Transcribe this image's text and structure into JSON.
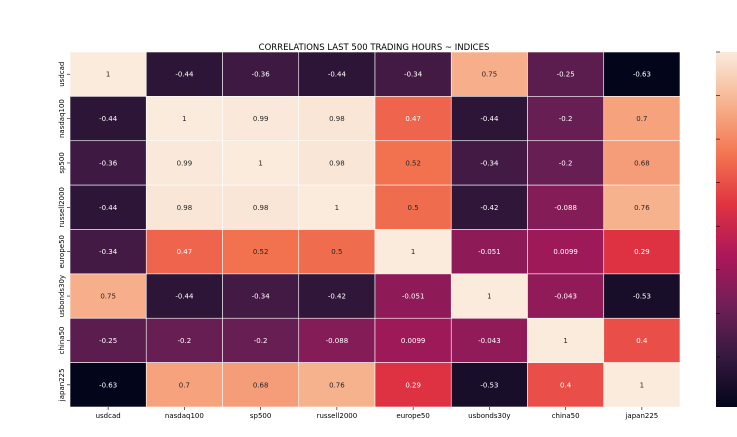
{
  "chart_data": {
    "type": "heatmap",
    "title": "CORRELATIONS LAST 500 TRADING HOURS  ~ INDICES",
    "xlabel": "",
    "ylabel": "",
    "x": [
      "usdcad",
      "nasdaq100",
      "sp500",
      "russell2000",
      "europe50",
      "usbonds30y",
      "china50",
      "japan225"
    ],
    "y": [
      "usdcad",
      "nasdaq100",
      "sp500",
      "russell2000",
      "europe50",
      "usbonds30y",
      "china50",
      "japan225"
    ],
    "values": [
      [
        1,
        -0.44,
        -0.36,
        -0.44,
        -0.34,
        0.75,
        -0.25,
        -0.63
      ],
      [
        -0.44,
        1,
        0.99,
        0.98,
        0.47,
        -0.44,
        -0.2,
        0.7
      ],
      [
        -0.36,
        0.99,
        1,
        0.98,
        0.52,
        -0.34,
        -0.2,
        0.68
      ],
      [
        -0.44,
        0.98,
        0.98,
        1,
        0.5,
        -0.42,
        -0.088,
        0.76
      ],
      [
        -0.34,
        0.47,
        0.52,
        0.5,
        1,
        -0.051,
        0.0099,
        0.29
      ],
      [
        0.75,
        -0.44,
        -0.34,
        -0.42,
        -0.051,
        1,
        -0.043,
        -0.53
      ],
      [
        -0.25,
        -0.2,
        -0.2,
        -0.088,
        0.0099,
        -0.043,
        1,
        0.4
      ],
      [
        -0.63,
        0.7,
        0.68,
        0.76,
        0.29,
        -0.53,
        0.4,
        1
      ]
    ],
    "labels": [
      [
        "1",
        "-0.44",
        "-0.36",
        "-0.44",
        "-0.34",
        "0.75",
        "-0.25",
        "-0.63"
      ],
      [
        "-0.44",
        "1",
        "0.99",
        "0.98",
        "0.47",
        "-0.44",
        "-0.2",
        "0.7"
      ],
      [
        "-0.36",
        "0.99",
        "1",
        "0.98",
        "0.52",
        "-0.34",
        "-0.2",
        "0.68"
      ],
      [
        "-0.44",
        "0.98",
        "0.98",
        "1",
        "0.5",
        "-0.42",
        "-0.088",
        "0.76"
      ],
      [
        "-0.34",
        "0.47",
        "0.52",
        "0.5",
        "1",
        "-0.051",
        "0.0099",
        "0.29"
      ],
      [
        "0.75",
        "-0.44",
        "-0.34",
        "-0.42",
        "-0.051",
        "1",
        "-0.043",
        "-0.53"
      ],
      [
        "-0.25",
        "-0.2",
        "-0.2",
        "-0.088",
        "0.0099",
        "-0.043",
        "1",
        "0.4"
      ],
      [
        "-0.63",
        "0.7",
        "0.68",
        "0.76",
        "0.29",
        "-0.53",
        "0.4",
        "1"
      ]
    ],
    "colorbar_range": [
      -0.63,
      1
    ],
    "colormap": [
      "#03051a",
      "#35193e",
      "#701f57",
      "#ad1759",
      "#e13342",
      "#f37651",
      "#f6b48f",
      "#faebdd"
    ],
    "grid_color": "#ffffff"
  }
}
